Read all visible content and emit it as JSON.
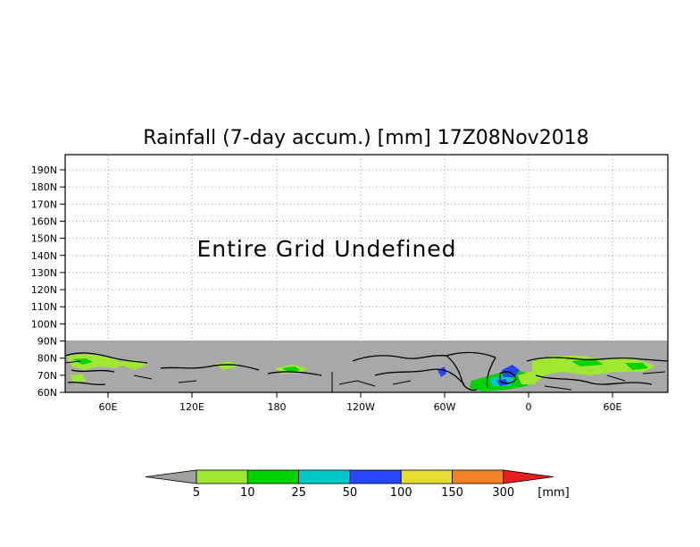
{
  "title": "Rainfall (7-day accum.) [mm] 17Z08Nov2018",
  "overlay_message": "Entire Grid Undefined",
  "lat_labels": [
    "190N",
    "180N",
    "170N",
    "160N",
    "150N",
    "140N",
    "130N",
    "120N",
    "110N",
    "100N",
    "90N",
    "80N",
    "70N",
    "60N"
  ],
  "lon_labels": [
    "60E",
    "120E",
    "180",
    "120W",
    "60W",
    "0",
    "60E"
  ],
  "legend": {
    "unit": "[mm]",
    "labels": [
      "5",
      "10",
      "25",
      "50",
      "100",
      "150",
      "300"
    ],
    "colors": [
      "#a0a0a0",
      "#a0e632",
      "#00d200",
      "#00c8c8",
      "#2846ff",
      "#e6dc32",
      "#f08228",
      "#e61e1e"
    ]
  },
  "colors": {
    "undefined_gray": "#a8a8a8",
    "coast": "#000000"
  }
}
